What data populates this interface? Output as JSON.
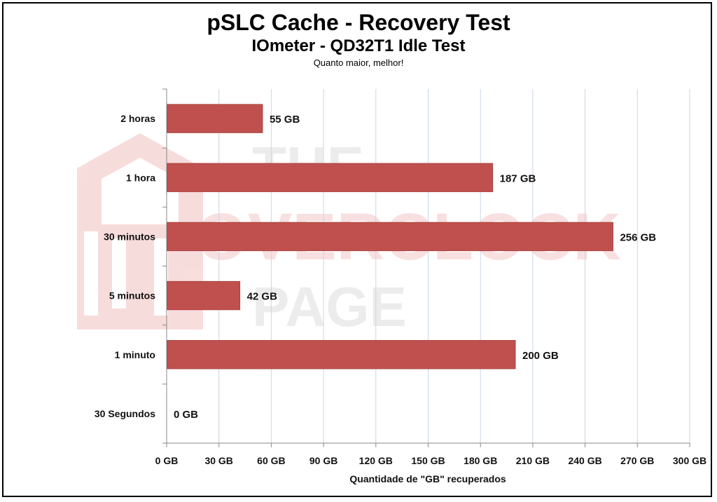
{
  "chart_data": {
    "type": "bar",
    "orientation": "horizontal",
    "title": "pSLC Cache - Recovery Test",
    "subtitle": "IOmeter - QD32T1 Idle Test",
    "note": "Quanto maior, melhor!",
    "xlabel": "Quantidade de \"GB\" recuperados",
    "ylabel": "",
    "categories": [
      "2 horas",
      "1 hora",
      "30 minutos",
      "5 minutos",
      "1 minuto",
      "30 Segundos"
    ],
    "values": [
      55,
      187,
      256,
      42,
      200,
      0
    ],
    "value_labels": [
      "55 GB",
      "187 GB",
      "256 GB",
      "42 GB",
      "200 GB",
      "0 GB"
    ],
    "xlim": [
      0,
      300
    ],
    "x_ticks": [
      0,
      30,
      60,
      90,
      120,
      150,
      180,
      210,
      240,
      270,
      300
    ],
    "x_tick_labels": [
      "0 GB",
      "30 GB",
      "60 GB",
      "90 GB",
      "120 GB",
      "150 GB",
      "180 GB",
      "210 GB",
      "240 GB",
      "270 GB",
      "300 GB"
    ],
    "grid": true,
    "legend": "none",
    "bar_color": "#c0504d"
  },
  "watermark": {
    "lines": [
      "THE",
      "OVERCLOCK",
      "PAGE"
    ],
    "color": "#f2b8b8"
  }
}
